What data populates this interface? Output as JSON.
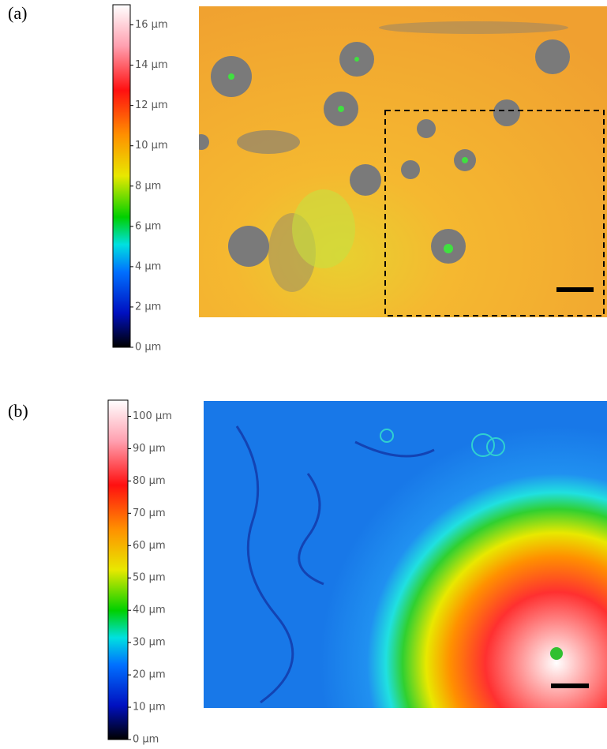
{
  "panels": [
    {
      "label": "(a)",
      "colorbar": {
        "lim": [
          0,
          17
        ],
        "ticks": [
          {
            "value": 0,
            "label": "0 µm"
          },
          {
            "value": 2,
            "label": "2 µm"
          },
          {
            "value": 4,
            "label": "4 µm"
          },
          {
            "value": 6,
            "label": "6 µm"
          },
          {
            "value": 8,
            "label": "8 µm"
          },
          {
            "value": 10,
            "label": "10 µm"
          },
          {
            "value": 12,
            "label": "12 µm"
          },
          {
            "value": 14,
            "label": "14 µm"
          },
          {
            "value": 16,
            "label": "16 µm"
          }
        ]
      }
    },
    {
      "label": "(b)",
      "colorbar": {
        "lim": [
          0,
          105
        ],
        "ticks": [
          {
            "value": 0,
            "label": "0 µm"
          },
          {
            "value": 10,
            "label": "10 µm"
          },
          {
            "value": 20,
            "label": "20 µm"
          },
          {
            "value": 30,
            "label": "30 µm"
          },
          {
            "value": 40,
            "label": "40 µm"
          },
          {
            "value": 50,
            "label": "50 µm"
          },
          {
            "value": 60,
            "label": "60 µm"
          },
          {
            "value": 70,
            "label": "70 µm"
          },
          {
            "value": 80,
            "label": "80 µm"
          },
          {
            "value": 90,
            "label": "90 µm"
          },
          {
            "value": 100,
            "label": "100 µm"
          }
        ]
      }
    }
  ]
}
